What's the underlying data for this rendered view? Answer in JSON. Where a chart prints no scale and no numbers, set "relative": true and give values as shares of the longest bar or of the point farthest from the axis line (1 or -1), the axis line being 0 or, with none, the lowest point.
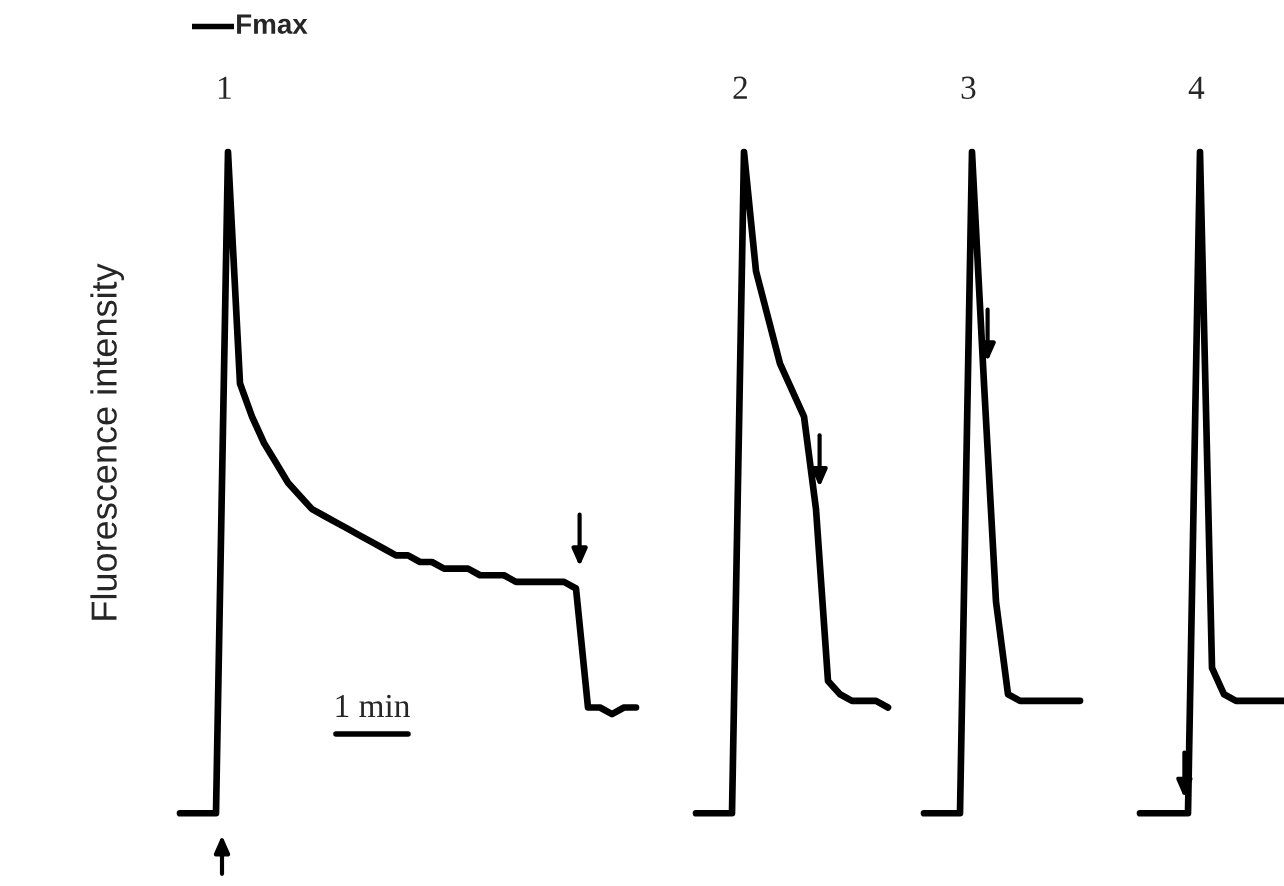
{
  "chart_data": [
    {
      "type": "line",
      "relative": true,
      "ylabel": "Fluorescence intensity",
      "categories": [
        null,
        null,
        null,
        null,
        null,
        null,
        null,
        null,
        null,
        null,
        null,
        null,
        null,
        null,
        null,
        null,
        null,
        null,
        null,
        null,
        null,
        null,
        null,
        null,
        null,
        null,
        null,
        null,
        null,
        null,
        null,
        null,
        null,
        null,
        null,
        null,
        null,
        null,
        null
      ],
      "series": [
        {
          "color": "#000000",
          "values": [
            0,
            0,
            0,
            0,
            1,
            0.65,
            0.6,
            0.56,
            0.53,
            0.5,
            0.48,
            0.46,
            0.45,
            0.44,
            0.43,
            0.42,
            0.41,
            0.4,
            0.39,
            0.39,
            0.38,
            0.38,
            0.37,
            0.37,
            0.37,
            0.36,
            0.36,
            0.36,
            0.35,
            0.35,
            0.35,
            0.35,
            0.35,
            0.34,
            0.16,
            0.16,
            0.15,
            0.16,
            0.16
          ]
        }
      ],
      "annotations": [
        "Fmax",
        "1",
        "1 min"
      ]
    },
    {
      "type": "line",
      "relative": true,
      "categories": [
        null,
        null,
        null,
        null,
        null,
        null,
        null,
        null,
        null,
        null,
        null,
        null,
        null,
        null,
        null,
        null,
        null
      ],
      "series": [
        {
          "color": "#000000",
          "values": [
            0,
            0,
            0,
            0,
            1,
            0.82,
            0.75,
            0.68,
            0.64,
            0.6,
            0.46,
            0.2,
            0.18,
            0.17,
            0.17,
            0.17,
            0.16
          ]
        }
      ],
      "annotations": [
        "2"
      ]
    },
    {
      "type": "line",
      "relative": true,
      "categories": [
        null,
        null,
        null,
        null,
        null,
        null,
        null,
        null,
        null,
        null,
        null,
        null,
        null,
        null
      ],
      "series": [
        {
          "color": "#000000",
          "values": [
            0,
            0,
            0,
            0,
            1,
            0.65,
            0.32,
            0.18,
            0.17,
            0.17,
            0.17,
            0.17,
            0.17,
            0.17
          ]
        }
      ],
      "annotations": [
        "3"
      ]
    },
    {
      "type": "line",
      "relative": true,
      "categories": [
        null,
        null,
        null,
        null,
        null,
        null,
        null,
        null,
        null,
        null,
        null,
        null,
        null
      ],
      "series": [
        {
          "color": "#000000",
          "values": [
            0,
            0,
            0,
            0,
            0,
            1,
            0.22,
            0.18,
            0.17,
            0.17,
            0.17,
            0.17,
            0.17
          ]
        }
      ],
      "annotations": [
        "4"
      ]
    }
  ]
}
